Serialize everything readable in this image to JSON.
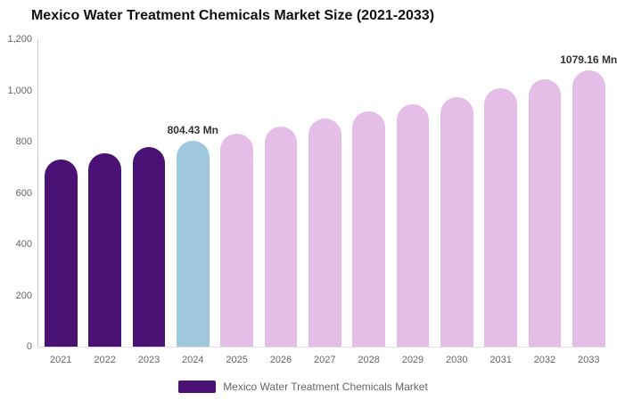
{
  "colors": {
    "historical": "#4B1275",
    "base_year": "#9FC7DD",
    "forecast": "#E5BEE8",
    "axis_line": "#cccccc",
    "axis_text": "#666666",
    "data_label_text": "#333333"
  },
  "legend": {
    "label": "Mexico Water Treatment Chemicals Market",
    "swatch_color": "#4B1275"
  },
  "chart_data": {
    "type": "bar",
    "title": "Mexico Water Treatment Chemicals Market Size (2021-2033)",
    "xlabel": "",
    "ylabel": "",
    "unit": "Mn",
    "ylim": [
      0,
      1200
    ],
    "grid": false,
    "legend_position": "bottom",
    "yticks": [
      0,
      200,
      400,
      600,
      800,
      1000,
      1200
    ],
    "ytick_labels": [
      "0",
      "200",
      "400",
      "600",
      "800",
      "1,000",
      "1,200"
    ],
    "categories": [
      "2021",
      "2022",
      "2023",
      "2024",
      "2025",
      "2026",
      "2027",
      "2028",
      "2029",
      "2030",
      "2031",
      "2032",
      "2033"
    ],
    "series": [
      {
        "name": "Mexico Water Treatment Chemicals Market",
        "values": [
          730,
          755,
          780,
          804.43,
          830,
          858,
          890,
          920,
          945,
          975,
          1010,
          1042,
          1079.16
        ]
      }
    ],
    "points": [
      {
        "year": "2021",
        "value": 730,
        "period": "historical",
        "label": ""
      },
      {
        "year": "2022",
        "value": 755,
        "period": "historical",
        "label": ""
      },
      {
        "year": "2023",
        "value": 780,
        "period": "historical",
        "label": ""
      },
      {
        "year": "2024",
        "value": 804.43,
        "period": "base_year",
        "label": "804.43 Mn"
      },
      {
        "year": "2025",
        "value": 830,
        "period": "forecast",
        "label": ""
      },
      {
        "year": "2026",
        "value": 858,
        "period": "forecast",
        "label": ""
      },
      {
        "year": "2027",
        "value": 890,
        "period": "forecast",
        "label": ""
      },
      {
        "year": "2028",
        "value": 920,
        "period": "forecast",
        "label": ""
      },
      {
        "year": "2029",
        "value": 945,
        "period": "forecast",
        "label": ""
      },
      {
        "year": "2030",
        "value": 975,
        "period": "forecast",
        "label": ""
      },
      {
        "year": "2031",
        "value": 1010,
        "period": "forecast",
        "label": ""
      },
      {
        "year": "2032",
        "value": 1042,
        "period": "forecast",
        "label": ""
      },
      {
        "year": "2033",
        "value": 1079.16,
        "period": "forecast",
        "label": "1079.16 Mn"
      }
    ]
  }
}
